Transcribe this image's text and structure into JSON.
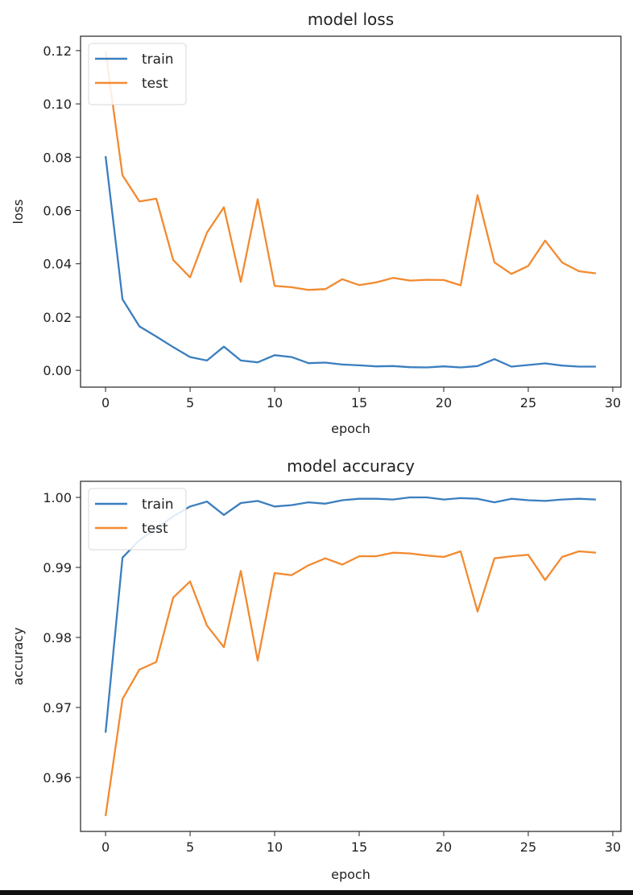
{
  "colors": {
    "train": "#3a7ebf",
    "test": "#f28a30"
  },
  "chart_data": [
    {
      "type": "line",
      "title": "model loss",
      "xlabel": "epoch",
      "ylabel": "loss",
      "xlim": [
        -1.48,
        30.48
      ],
      "ylim": [
        -0.0063,
        0.1254
      ],
      "xticks": [
        0,
        5,
        10,
        15,
        20,
        25,
        30
      ],
      "xtick_labels": [
        "0",
        "5",
        "10",
        "15",
        "20",
        "25",
        "30"
      ],
      "yticks": [
        0,
        0.02,
        0.04,
        0.06,
        0.08,
        0.1,
        0.12
      ],
      "ytick_labels": [
        "0.00",
        "0.02",
        "0.04",
        "0.06",
        "0.08",
        "0.10",
        "0.12"
      ],
      "legend": "top-left",
      "grid": false,
      "x": [
        0,
        1,
        2,
        3,
        4,
        5,
        6,
        7,
        8,
        9,
        10,
        11,
        12,
        13,
        14,
        15,
        16,
        17,
        18,
        19,
        20,
        21,
        22,
        23,
        24,
        25,
        26,
        27,
        28,
        29
      ],
      "series": [
        {
          "name": "train",
          "values": [
            0.0804,
            0.0267,
            0.0165,
            0.0127,
            0.0087,
            0.005,
            0.0037,
            0.0089,
            0.0037,
            0.003,
            0.0057,
            0.005,
            0.0027,
            0.0029,
            0.0022,
            0.0019,
            0.0015,
            0.0016,
            0.0012,
            0.0011,
            0.0015,
            0.0011,
            0.0016,
            0.0042,
            0.0014,
            0.002,
            0.0026,
            0.0018,
            0.0014,
            0.0014
          ]
        },
        {
          "name": "test",
          "values": [
            0.1197,
            0.0732,
            0.0634,
            0.0644,
            0.0414,
            0.0349,
            0.0517,
            0.0612,
            0.0332,
            0.0642,
            0.0317,
            0.0312,
            0.0302,
            0.0305,
            0.0342,
            0.032,
            0.033,
            0.0347,
            0.0337,
            0.034,
            0.0339,
            0.0319,
            0.0657,
            0.0405,
            0.0362,
            0.0392,
            0.0487,
            0.0405,
            0.0372,
            0.0364
          ]
        }
      ]
    },
    {
      "type": "line",
      "title": "model accuracy",
      "xlabel": "epoch",
      "ylabel": "accuracy",
      "xlim": [
        -1.48,
        30.48
      ],
      "ylim": [
        0.9523,
        1.0023
      ],
      "xticks": [
        0,
        5,
        10,
        15,
        20,
        25,
        30
      ],
      "xtick_labels": [
        "0",
        "5",
        "10",
        "15",
        "20",
        "25",
        "30"
      ],
      "yticks": [
        0.96,
        0.97,
        0.98,
        0.99,
        1.0
      ],
      "ytick_labels": [
        "0.96",
        "0.97",
        "0.98",
        "0.99",
        "1.00"
      ],
      "legend": "top-left",
      "grid": false,
      "x": [
        0,
        1,
        2,
        3,
        4,
        5,
        6,
        7,
        8,
        9,
        10,
        11,
        12,
        13,
        14,
        15,
        16,
        17,
        18,
        19,
        20,
        21,
        22,
        23,
        24,
        25,
        26,
        27,
        28,
        29
      ],
      "series": [
        {
          "name": "train",
          "values": [
            0.9664,
            0.9914,
            0.9939,
            0.9956,
            0.9973,
            0.9987,
            0.9994,
            0.9975,
            0.9992,
            0.9995,
            0.9987,
            0.9989,
            0.9993,
            0.9991,
            0.9996,
            0.9998,
            0.9998,
            0.9997,
            1.0,
            1.0,
            0.9997,
            0.9999,
            0.9998,
            0.9993,
            0.9998,
            0.9996,
            0.9995,
            0.9997,
            0.9998,
            0.9997
          ]
        },
        {
          "name": "test",
          "values": [
            0.9545,
            0.9712,
            0.9754,
            0.9765,
            0.9857,
            0.988,
            0.9817,
            0.9786,
            0.9895,
            0.9767,
            0.9892,
            0.9889,
            0.9903,
            0.9913,
            0.9904,
            0.9916,
            0.9916,
            0.9921,
            0.992,
            0.9917,
            0.9915,
            0.9923,
            0.9837,
            0.9913,
            0.9916,
            0.9918,
            0.9882,
            0.9915,
            0.9923,
            0.9921
          ]
        }
      ]
    }
  ]
}
